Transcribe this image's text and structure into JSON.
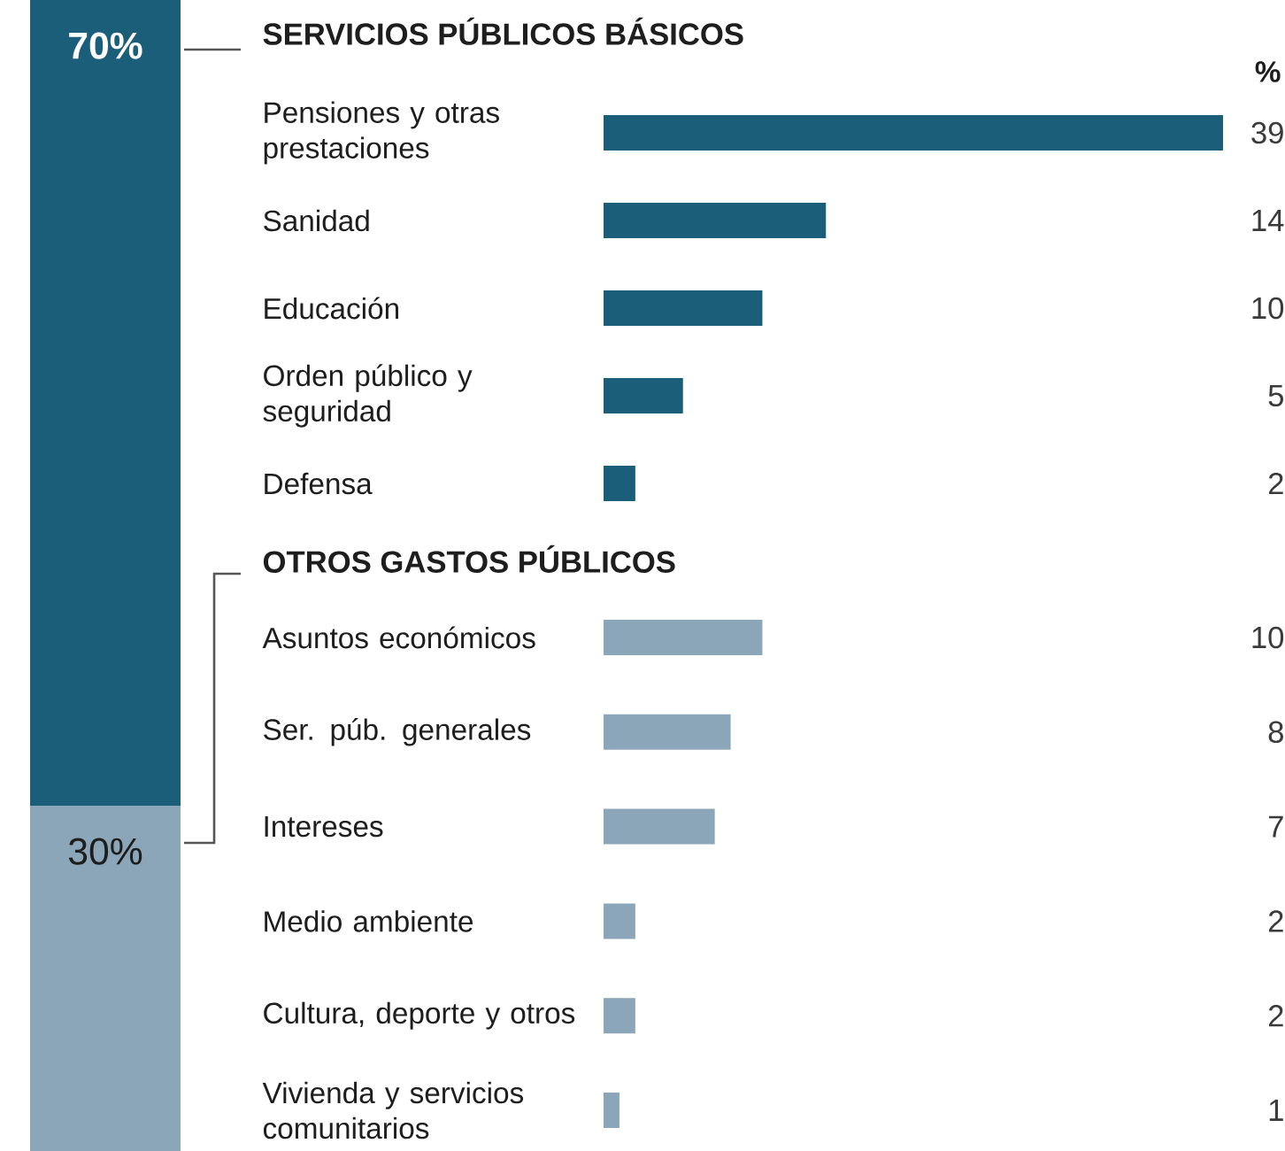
{
  "chart_data": [
    {
      "type": "bar",
      "stacked": true,
      "categories": [
        null
      ],
      "series": [
        {
          "color": "#8ba6b8",
          "values": [
            30
          ],
          "value_labels": [
            "30%"
          ]
        },
        {
          "color": "#1b5e79",
          "values": [
            70
          ],
          "value_labels": [
            "70%"
          ]
        }
      ]
    },
    {
      "type": "bar",
      "orientation": "horizontal",
      "title": "SERVICIOS PÚBLICOS BÁSICOS",
      "xlabel": "%",
      "categories": [
        "Pensiones y otras prestaciones",
        "Sanidad",
        "Educación",
        "Orden público y seguridad",
        "Defensa"
      ],
      "values": [
        39,
        14,
        10,
        5,
        2
      ],
      "value_labels": [
        "39",
        "14",
        "10",
        "5",
        "2"
      ],
      "color": "#1b5e79"
    },
    {
      "type": "bar",
      "orientation": "horizontal",
      "title": "OTROS GASTOS PÚBLICOS",
      "categories": [
        "Asuntos económicos",
        "Ser. púb. generales",
        "Intereses",
        "Medio ambiente",
        "Cultura, deporte y otros",
        "Vivienda y servicios comunitarios"
      ],
      "values": [
        10,
        8,
        7,
        2,
        2,
        1
      ],
      "value_labels": [
        "10",
        "8",
        "7",
        "2",
        "2",
        "1"
      ],
      "color": "#8ba6b8"
    }
  ]
}
